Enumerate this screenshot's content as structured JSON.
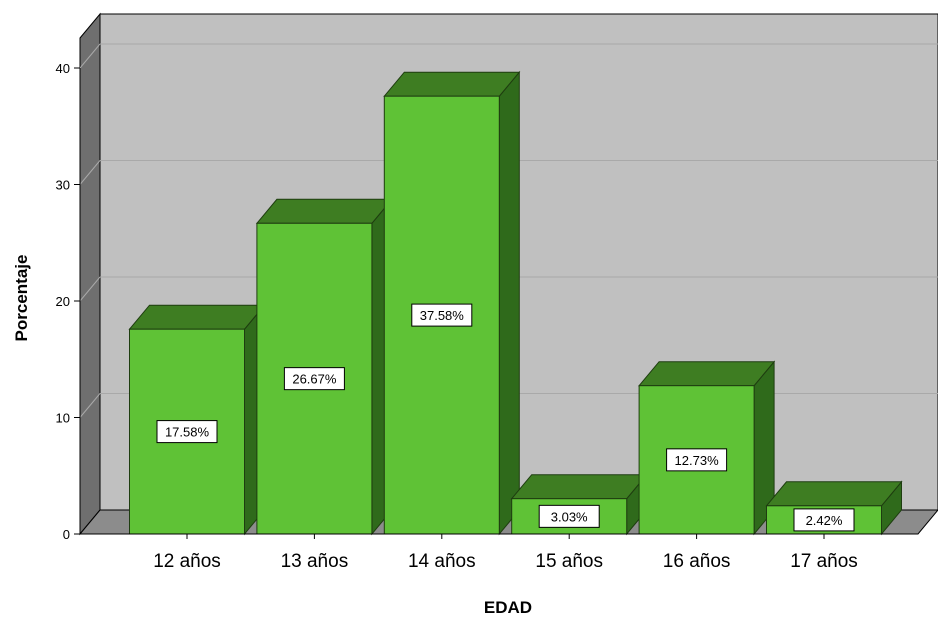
{
  "chart_data": {
    "type": "bar",
    "xlabel": "EDAD",
    "ylabel": "Porcentaje",
    "categories": [
      "12 años",
      "13 años",
      "14 años",
      "15 años",
      "16 años",
      "17 años"
    ],
    "values": [
      17.58,
      26.67,
      37.58,
      3.03,
      12.73,
      2.42
    ],
    "data_labels": [
      "17.58%",
      "26.67%",
      "37.58%",
      "3.03%",
      "12.73%",
      "2.42%"
    ],
    "yticks": [
      "0",
      "10",
      "20",
      "30",
      "40"
    ],
    "ylim": [
      0,
      40
    ],
    "grid": true,
    "style": "3d",
    "colors": {
      "bar_front": "#5fc236",
      "bar_top": "#3e7d22",
      "bar_side": "#2f6a1b",
      "plot_back": "#c0c0c0",
      "plot_floor": "#8c8c8c",
      "plot_wall": "#6f6f6f"
    }
  }
}
